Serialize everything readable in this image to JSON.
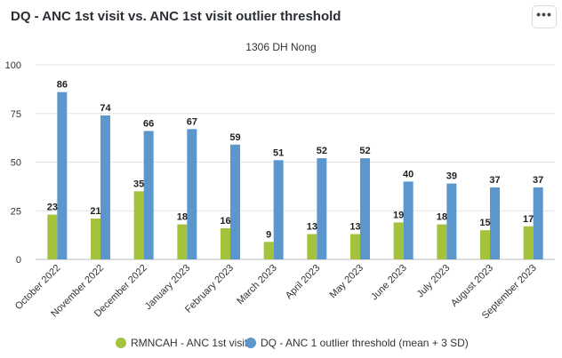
{
  "title": "DQ - ANC 1st visit vs. ANC 1st visit outlier threshold",
  "menu_icon": "ellipsis-icon",
  "menu_label": "•••",
  "chart_data": {
    "type": "bar",
    "subtitle": "1306 DH Nong",
    "categories": [
      "October 2022",
      "November 2022",
      "December 2022",
      "January 2023",
      "February 2023",
      "March 2023",
      "April 2023",
      "May 2023",
      "June 2023",
      "July 2023",
      "August 2023",
      "September 2023"
    ],
    "series": [
      {
        "name": "RMNCAH - ANC 1st visit",
        "color": "#a4c33c",
        "values": [
          23,
          21,
          35,
          18,
          16,
          9,
          13,
          13,
          19,
          18,
          15,
          17
        ]
      },
      {
        "name": "DQ - ANC 1 outlier threshold (mean + 3 SD)",
        "color": "#5b96cd",
        "values": [
          86,
          74,
          66,
          67,
          59,
          51,
          52,
          52,
          40,
          39,
          37,
          37
        ]
      }
    ],
    "yticks": [
      0,
      25,
      50,
      75,
      100
    ],
    "ylim": [
      0,
      100
    ],
    "grid": true,
    "legend": "bottom"
  }
}
